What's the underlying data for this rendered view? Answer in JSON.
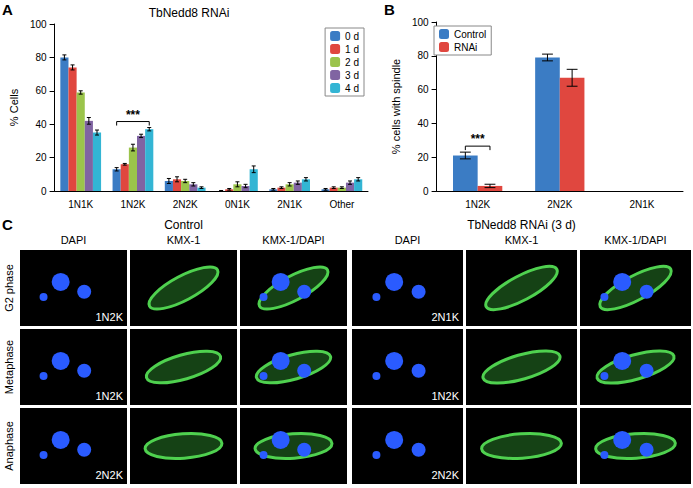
{
  "panels": [
    "A",
    "B",
    "C"
  ],
  "chart_data": [
    {
      "type": "bar",
      "title": "TbNedd8 RNAi",
      "y_label": "% Cells",
      "categories": [
        "1N1K",
        "1N2K",
        "2N2K",
        "0N1K",
        "2N1K",
        "Other"
      ],
      "series": [
        {
          "name": "0 d",
          "color": "#3b7cc4",
          "values": [
            80,
            13,
            6,
            0,
            1,
            1
          ],
          "errors": [
            1.5,
            1,
            1.5,
            0.3,
            0.5,
            0.5
          ]
        },
        {
          "name": "1 d",
          "color": "#e0473f",
          "values": [
            74,
            16,
            7,
            1,
            2,
            2
          ],
          "errors": [
            1.5,
            0.5,
            1.5,
            0.5,
            0.5,
            0.5
          ]
        },
        {
          "name": "2 d",
          "color": "#9bc44b",
          "values": [
            59,
            26,
            6,
            4,
            4,
            2
          ],
          "errors": [
            1,
            2,
            1,
            1.5,
            1,
            0.5
          ]
        },
        {
          "name": "3 d",
          "color": "#8064a2",
          "values": [
            42,
            33,
            4,
            3,
            5,
            5
          ],
          "errors": [
            2,
            1,
            1,
            1,
            1,
            1
          ]
        },
        {
          "name": "4 d",
          "color": "#33b5d4",
          "values": [
            35,
            37,
            2,
            13,
            7,
            7
          ],
          "errors": [
            1.5,
            1,
            0.5,
            2,
            1,
            1
          ]
        }
      ],
      "ylim": [
        0,
        100
      ],
      "yticks": [
        0,
        20,
        40,
        60,
        80,
        100
      ],
      "grid": false,
      "legend": "top-right",
      "annotations": [
        {
          "category": "1N2K",
          "text": "***"
        }
      ]
    },
    {
      "type": "bar",
      "y_label": "% cells with spindle",
      "categories": [
        "1N2K",
        "2N2K",
        "2N1K"
      ],
      "series": [
        {
          "name": "Control",
          "color": "#3b7cc4",
          "values": [
            21,
            79,
            0
          ],
          "errors": [
            2,
            2,
            0
          ]
        },
        {
          "name": "RNAi",
          "color": "#e0473f",
          "values": [
            3,
            67,
            0
          ],
          "errors": [
            1,
            5,
            0
          ]
        }
      ],
      "ylim": [
        0,
        100
      ],
      "yticks": [
        0,
        20,
        40,
        60,
        80,
        100
      ],
      "grid": false,
      "legend": "top-left",
      "annotations": [
        {
          "category": "1N2K",
          "text": "***"
        }
      ]
    }
  ],
  "micrographs": {
    "groups": [
      {
        "title": "Control",
        "columns": [
          "DAPI",
          "KMX-1",
          "KMX-1/DAPI"
        ],
        "rows": [
          {
            "phase": "G2 phase",
            "cell_type": "1N2K"
          },
          {
            "phase": "Metaphase",
            "cell_type": "1N2K"
          },
          {
            "phase": "Anaphase",
            "cell_type": "2N2K"
          }
        ]
      },
      {
        "title": "TbNedd8 RNAi (3 d)",
        "columns": [
          "DAPI",
          "KMX-1",
          "KMX-1/DAPI"
        ],
        "rows": [
          {
            "cell_type": "2N1K"
          },
          {
            "cell_type": "1N2K"
          },
          {
            "cell_type": "2N2K"
          }
        ]
      }
    ]
  }
}
